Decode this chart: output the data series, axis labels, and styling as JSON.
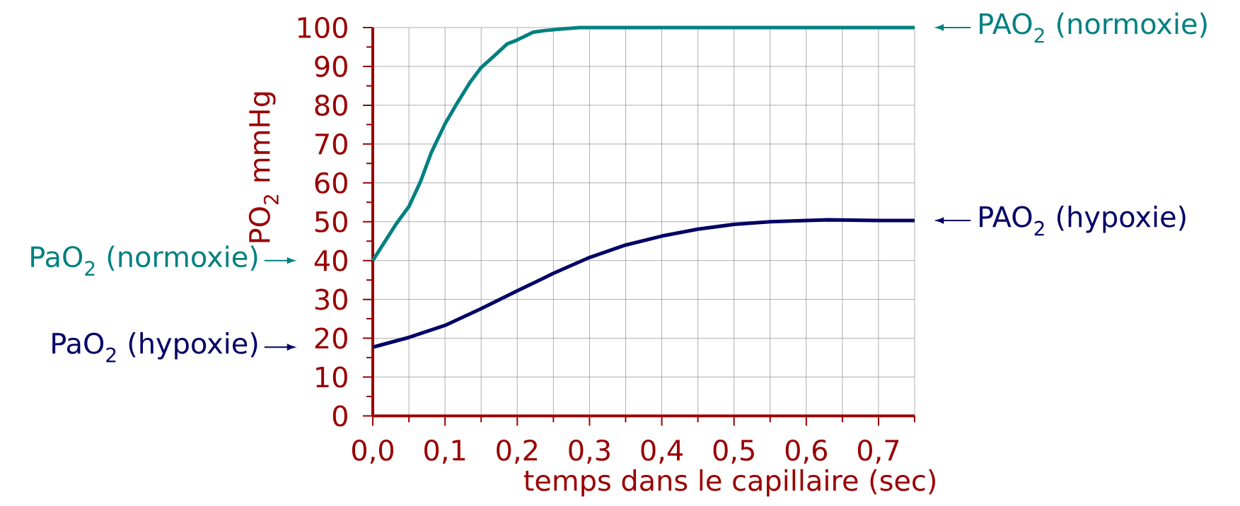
{
  "chart_data": {
    "type": "line",
    "xlabel": "temps dans le capillaire (sec)",
    "ylabel": "PO$_{2}$ mmHg",
    "xlim": [
      0,
      0.75
    ],
    "ylim": [
      0,
      100
    ],
    "xticks": [
      {
        "value": 0,
        "label": "0,0"
      },
      {
        "value": 0.05,
        "label": null
      },
      {
        "value": 0.1,
        "label": "0,1"
      },
      {
        "value": 0.15,
        "label": null
      },
      {
        "value": 0.2,
        "label": "0,2"
      },
      {
        "value": 0.25,
        "label": null
      },
      {
        "value": 0.3,
        "label": "0,3"
      },
      {
        "value": 0.35,
        "label": null
      },
      {
        "value": 0.4,
        "label": "0,4"
      },
      {
        "value": 0.45,
        "label": null
      },
      {
        "value": 0.5,
        "label": "0,5"
      },
      {
        "value": 0.55,
        "label": null
      },
      {
        "value": 0.6,
        "label": "0,6"
      },
      {
        "value": 0.65,
        "label": null
      },
      {
        "value": 0.7,
        "label": "0,7"
      },
      {
        "value": 0.75,
        "label": null
      }
    ],
    "yticks": [
      0,
      {
        "value": 5,
        "label": null
      },
      10,
      {
        "value": 15,
        "label": null
      },
      20,
      {
        "value": 25,
        "label": null
      },
      30,
      {
        "value": 35,
        "label": null
      },
      40,
      {
        "value": 45,
        "label": null
      },
      50,
      {
        "value": 55,
        "label": null
      },
      60,
      {
        "value": 65,
        "label": null
      },
      70,
      {
        "value": 75,
        "label": null
      },
      80,
      {
        "value": 85,
        "label": null
      },
      90,
      {
        "value": 95,
        "label": null
      },
      100
    ],
    "grid": true,
    "marker": "none",
    "line_style": "solid",
    "series": [
      {
        "color": "#008080",
        "x": [
          0,
          0.033,
          0.05,
          0.066,
          0.081,
          0.1,
          0.117,
          0.135,
          0.15,
          0.168,
          0.186,
          0.2,
          0.222,
          0.237,
          0.258,
          0.287,
          0.4,
          0.5,
          0.6,
          0.75
        ],
        "values": [
          40,
          49.6,
          53.9,
          60.3,
          67.8,
          75.2,
          80.6,
          86,
          89.7,
          92.7,
          95.8,
          96.8,
          98.8,
          99.2,
          99.6,
          100,
          100,
          100,
          100,
          100
        ]
      },
      {
        "color": "#000066",
        "x": [
          0,
          0.05,
          0.1,
          0.15,
          0.2,
          0.25,
          0.3,
          0.35,
          0.4,
          0.45,
          0.5,
          0.55,
          0.6,
          0.63,
          0.7,
          0.75
        ],
        "values": [
          17.7,
          20.2,
          23.3,
          27.6,
          32.2,
          36.7,
          40.8,
          44,
          46.3,
          48.1,
          49.3,
          50,
          50.3,
          50.5,
          50.3,
          50.3
        ]
      }
    ],
    "annotations": [
      "PAO$_{2}$ (normoxie)",
      "PAO$_{2}$ (hypoxie)",
      "PaO$_{2}$ (normoxie)",
      "PaO$_{2}$ (hypoxie)"
    ]
  }
}
